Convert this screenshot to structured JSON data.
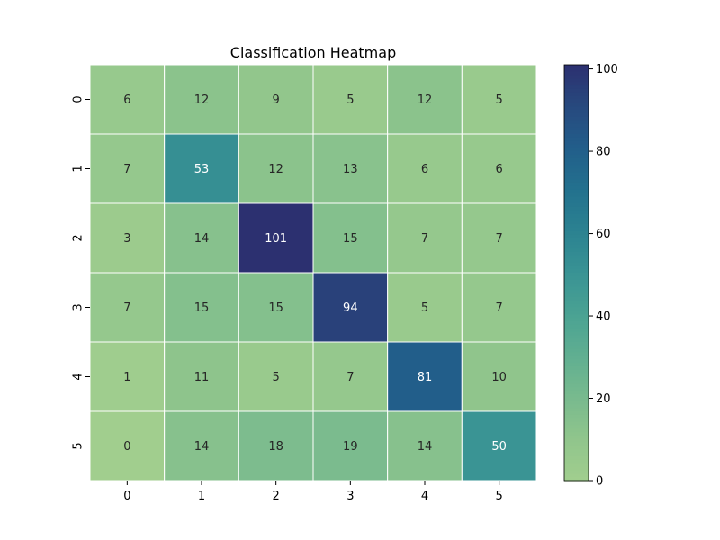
{
  "chart_data": {
    "type": "heatmap",
    "title": "Classification Heatmap",
    "xlabel": "",
    "ylabel": "",
    "x_categories": [
      "0",
      "1",
      "2",
      "3",
      "4",
      "5"
    ],
    "y_categories": [
      "0",
      "1",
      "2",
      "3",
      "4",
      "5"
    ],
    "values": [
      [
        6,
        12,
        9,
        5,
        12,
        5
      ],
      [
        7,
        53,
        12,
        13,
        6,
        6
      ],
      [
        3,
        14,
        101,
        15,
        7,
        7
      ],
      [
        7,
        15,
        15,
        94,
        5,
        7
      ],
      [
        1,
        11,
        5,
        7,
        81,
        10
      ],
      [
        0,
        14,
        18,
        19,
        14,
        50
      ]
    ],
    "annotated": true,
    "colormap": "crest",
    "vmin": 0,
    "vmax": 101,
    "colorbar_ticks": [
      0,
      20,
      40,
      60,
      80,
      100
    ],
    "cell_border_color": "#ffffff"
  }
}
